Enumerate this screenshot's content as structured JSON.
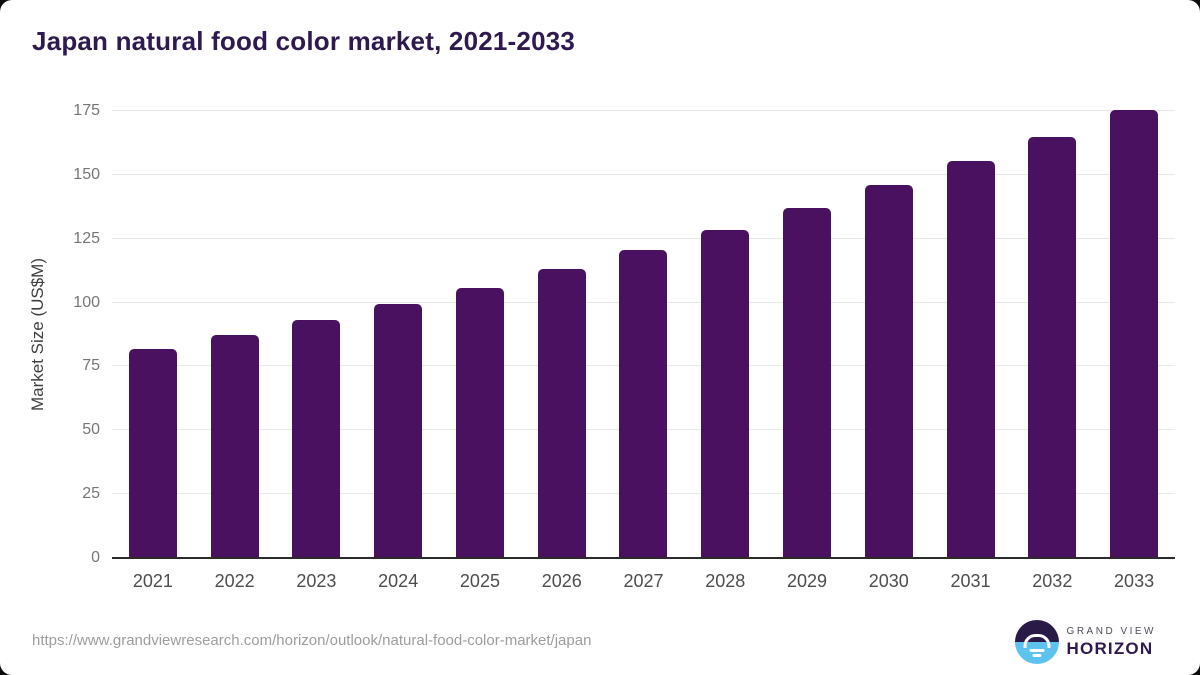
{
  "title": "Japan natural food color market, 2021-2033",
  "colors": {
    "bar": "#4A1160",
    "title": "#2E1A4E",
    "grid": "#E8E8E8",
    "axis_line": "#2B2B2B",
    "logo_dark": "#2A1A47",
    "logo_blue": "#5EC2EF"
  },
  "chart_data": {
    "type": "bar",
    "title": "Japan natural food color market, 2021-2033",
    "categories": [
      "2021",
      "2022",
      "2023",
      "2024",
      "2025",
      "2026",
      "2027",
      "2028",
      "2029",
      "2030",
      "2031",
      "2032",
      "2033"
    ],
    "values": [
      82.0,
      87.5,
      93.3,
      99.6,
      105.9,
      113.0,
      120.4,
      128.6,
      137.2,
      145.9,
      155.3,
      164.8,
      175.5
    ],
    "xlabel": "",
    "ylabel": "Market Size (US$M)",
    "ylim": [
      0,
      175
    ],
    "yticks": [
      0,
      25,
      50,
      75,
      100,
      125,
      150,
      175
    ],
    "grid": true,
    "legend": false,
    "bar_color": "#4A1160"
  },
  "footer": {
    "url": "https://www.grandviewresearch.com/horizon/outlook/natural-food-color-market/japan",
    "logo": {
      "line1": "GRAND VIEW",
      "line2": "HORIZON"
    }
  }
}
